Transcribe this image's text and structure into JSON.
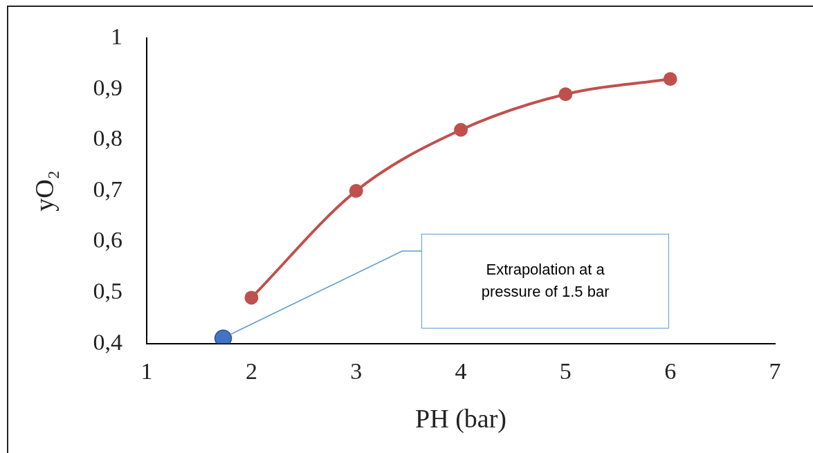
{
  "chart_data": {
    "type": "line",
    "xlabel": "PH (bar)",
    "ylabel": "yO₂",
    "xlim": [
      1,
      7
    ],
    "xticks": [
      1,
      2,
      3,
      4,
      5,
      6,
      7
    ],
    "ylim": [
      0.4,
      1
    ],
    "yticks": [
      {
        "value": 0.4,
        "label": "0,4"
      },
      {
        "value": 0.5,
        "label": "0,5"
      },
      {
        "value": 0.6,
        "label": "0,6"
      },
      {
        "value": 0.7,
        "label": "0,7"
      },
      {
        "value": 0.8,
        "label": "0,8"
      },
      {
        "value": 0.9,
        "label": "0,9"
      },
      1
    ],
    "marker": "circle",
    "grid": false,
    "legend": false,
    "series": [
      {
        "color": "#c0504d",
        "x": [
          2,
          3,
          4,
          5,
          6
        ],
        "values": [
          0.49,
          0.7,
          0.82,
          0.89,
          0.92
        ]
      },
      {
        "type": "scatter",
        "color": "#4472c4",
        "x": [
          1.73
        ],
        "values": [
          0.41
        ]
      }
    ],
    "annotations": [
      "Extrapolation at a pressure of 1.5 bar"
    ]
  }
}
